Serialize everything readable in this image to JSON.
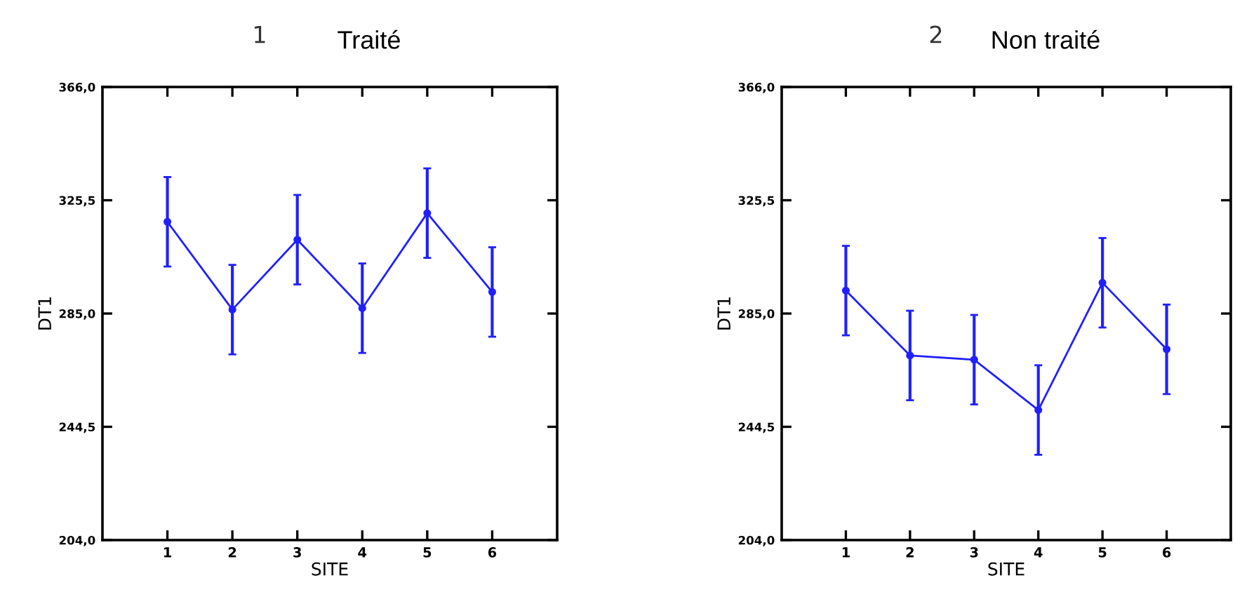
{
  "chart_data": [
    {
      "type": "line",
      "title": "Traité",
      "annotations": [
        "1"
      ],
      "xlabel": "SITE",
      "ylabel": "DT1",
      "x": [
        1,
        2,
        3,
        4,
        5,
        6
      ],
      "xlim": [
        0,
        7
      ],
      "xticks": [
        1,
        2,
        3,
        4,
        5,
        6
      ],
      "ylim": [
        204,
        366
      ],
      "yticks": [
        {
          "value": 204,
          "label": "204,0"
        },
        {
          "value": 244.5,
          "label": "244,5"
        },
        {
          "value": 285,
          "label": "285,0"
        },
        {
          "value": 325.5,
          "label": "325,5"
        },
        {
          "value": 366,
          "label": "366,0"
        }
      ],
      "marker": "circle",
      "grid": false,
      "series": [
        {
          "color": "#2020ff",
          "values": [
            317.8,
            286.4,
            311.4,
            286.9,
            320.9,
            292.7
          ],
          "errors": [
            16,
            16,
            16,
            16,
            16,
            16
          ]
        }
      ]
    },
    {
      "type": "line",
      "title": "Non traité",
      "annotations": [
        "2"
      ],
      "xlabel": "SITE",
      "ylabel": "DT1",
      "x": [
        1,
        2,
        3,
        4,
        5,
        6
      ],
      "xlim": [
        0,
        7
      ],
      "xticks": [
        1,
        2,
        3,
        4,
        5,
        6
      ],
      "ylim": [
        204,
        366
      ],
      "yticks": [
        {
          "value": 204,
          "label": "204,0"
        },
        {
          "value": 244.5,
          "label": "244,5"
        },
        {
          "value": 285,
          "label": "285,0"
        },
        {
          "value": 325.5,
          "label": "325,5"
        },
        {
          "value": 366,
          "label": "366,0"
        }
      ],
      "marker": "circle",
      "grid": false,
      "series": [
        {
          "color": "#2020ff",
          "values": [
            293.2,
            270.0,
            268.5,
            250.5,
            296.0,
            272.2
          ],
          "errors": [
            16,
            16,
            16,
            16,
            16,
            16
          ]
        }
      ]
    }
  ]
}
